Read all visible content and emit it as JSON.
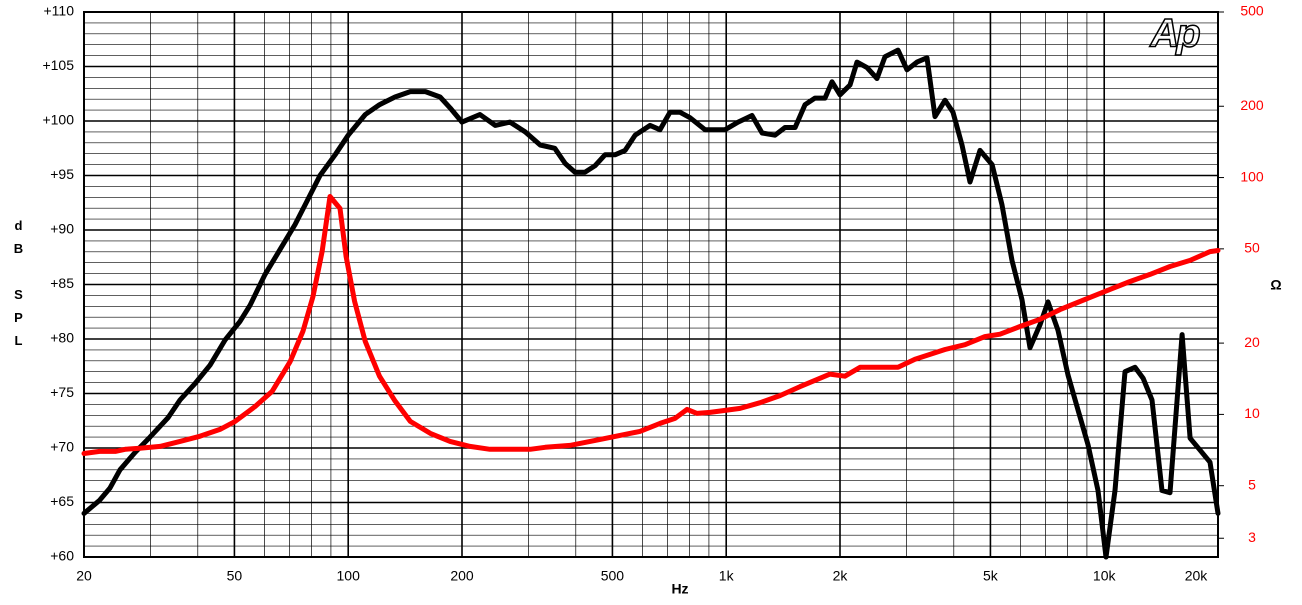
{
  "chart_data": {
    "type": "line",
    "logo": "Ap",
    "x_label": "Hz",
    "y_label": "dB SPL",
    "y2_label": "Ω",
    "xscale": "log",
    "y2scale": "log",
    "grid": true,
    "minor_grid": true,
    "xlim": [
      20,
      20000
    ],
    "xticks": [
      20,
      50,
      100,
      200,
      500,
      {
        "value": 1000,
        "label": "1k"
      },
      {
        "value": 2000,
        "label": "2k"
      },
      {
        "value": 5000,
        "label": "5k"
      },
      {
        "value": 10000,
        "label": "10k"
      },
      {
        "value": 20000,
        "label": "20k"
      }
    ],
    "ylim": [
      60,
      110
    ],
    "yticks": [
      {
        "value": 60,
        "label": "+60"
      },
      {
        "value": 65,
        "label": "+65"
      },
      {
        "value": 70,
        "label": "+70"
      },
      {
        "value": 75,
        "label": "+75"
      },
      {
        "value": 80,
        "label": "+80"
      },
      {
        "value": 85,
        "label": "+85"
      },
      {
        "value": 90,
        "label": "+90"
      },
      {
        "value": 95,
        "label": "+95"
      },
      {
        "value": 100,
        "label": "+100"
      },
      {
        "value": 105,
        "label": "+105"
      },
      {
        "value": 110,
        "label": "+110"
      }
    ],
    "y2lim": [
      2.5,
      500
    ],
    "y2ticks": [
      3,
      5,
      10,
      20,
      50,
      100,
      200,
      500
    ],
    "y2color": "#ff0000",
    "series": [
      {
        "color": "#000000",
        "x": [
          20,
          22,
          23.4,
          24.9,
          27.3,
          29.9,
          33.4,
          35.9,
          39.3,
          43.1,
          47.2,
          51.7,
          55,
          60.2,
          66,
          72.3,
          76.9,
          84.2,
          92.3,
          100,
          111,
          121,
          133,
          146,
          160,
          175,
          186,
          200,
          223,
          245,
          268,
          294,
          322,
          352,
          375,
          398,
          423,
          450,
          478,
          508,
          540,
          574,
          629,
          668,
          710,
          755,
          802,
          879,
          993,
          1075,
          1170,
          1244,
          1346,
          1431,
          1521,
          1616,
          1718,
          1825,
          1905,
          2000,
          2126,
          2218,
          2358,
          2506,
          2630,
          2848,
          3008,
          3197,
          3398,
          3568,
          3792,
          3980,
          4204,
          4414,
          4692,
          5050,
          5366,
          5702,
          6060,
          6364,
          6764,
          7102,
          7548,
          8022,
          8526,
          9062,
          9630,
          10110,
          10680,
          11350,
          12060,
          12670,
          13380,
          14220,
          14930,
          16070,
          16870,
          17930,
          19050,
          20000
        ],
        "values": [
          64.0,
          65.2,
          66.3,
          68.0,
          69.6,
          71.0,
          72.8,
          74.4,
          75.9,
          77.6,
          79.9,
          81.6,
          83.1,
          85.9,
          88.2,
          90.5,
          92.3,
          95.0,
          96.9,
          98.7,
          100.6,
          101.5,
          102.2,
          102.7,
          102.7,
          102.2,
          101.2,
          99.9,
          100.6,
          99.6,
          99.9,
          99.0,
          97.8,
          97.5,
          96.1,
          95.3,
          95.3,
          95.9,
          96.9,
          96.9,
          97.3,
          98.7,
          99.6,
          99.2,
          100.8,
          100.8,
          100.3,
          99.2,
          99.2,
          99.9,
          100.5,
          98.9,
          98.7,
          99.4,
          99.4,
          101.5,
          102.1,
          102.1,
          103.6,
          102.4,
          103.3,
          105.4,
          104.9,
          103.9,
          105.9,
          106.5,
          104.7,
          105.4,
          105.8,
          100.4,
          101.9,
          100.8,
          97.8,
          94.4,
          97.3,
          96.0,
          92.3,
          87.2,
          83.6,
          79.2,
          81.3,
          83.4,
          80.8,
          76.7,
          73.5,
          70.3,
          66.1,
          60.0,
          66.1,
          77.0,
          77.4,
          76.4,
          74.4,
          66.1,
          65.9,
          80.4,
          70.9,
          69.8,
          68.7,
          64.0
        ]
      },
      {
        "color": "#ff0000",
        "axis": "y2",
        "x": [
          20,
          22,
          24.2,
          25.7,
          28.1,
          31.8,
          35.9,
          40.5,
          45.8,
          50.2,
          56.7,
          62.9,
          70.2,
          75.9,
          80.7,
          85.3,
          89.5,
          95.1,
          98.7,
          104,
          111,
          121,
          133,
          146,
          165,
          186,
          210,
          237,
          303,
          332,
          386,
          464,
          591,
          668,
          732,
          788,
          837,
          906,
          993,
          1088,
          1229,
          1388,
          1568,
          1882,
          2061,
          2260,
          2848,
          3158,
          3792,
          4282,
          4836,
          5300,
          5988,
          6764,
          7638,
          8372,
          9172,
          10360,
          11700,
          13220,
          14930,
          16870,
          19050,
          20000
        ],
        "values": [
          6.84,
          6.98,
          6.98,
          7.12,
          7.19,
          7.33,
          7.69,
          8.08,
          8.64,
          9.34,
          10.8,
          12.5,
          16.7,
          22.4,
          31.5,
          48.7,
          83.2,
          74.0,
          46.4,
          30.0,
          20.3,
          14.5,
          11.4,
          9.34,
          8.31,
          7.69,
          7.33,
          7.12,
          7.12,
          7.26,
          7.4,
          7.84,
          8.48,
          9.16,
          9.62,
          10.5,
          10.1,
          10.2,
          10.4,
          10.6,
          11.2,
          12.0,
          13.1,
          14.8,
          14.5,
          15.8,
          15.8,
          17.1,
          18.8,
          19.7,
          21.3,
          21.8,
          23.5,
          25.2,
          27.7,
          29.4,
          31.2,
          33.7,
          36.4,
          39.0,
          42.1,
          44.7,
          48.7,
          49.2
        ]
      }
    ]
  }
}
